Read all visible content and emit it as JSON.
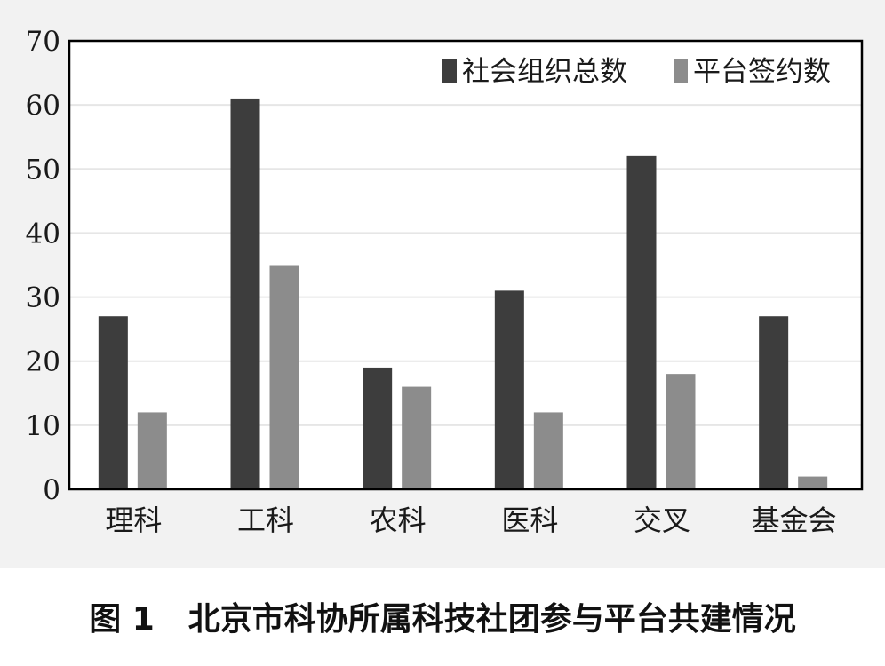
{
  "caption": {
    "figure_no": "图 1",
    "title": "北京市科协所属科技社团参与平台共建情况"
  },
  "colors": {
    "series0": "#3d3d3d",
    "series1": "#8c8c8c",
    "grid": "#e6e6e6",
    "axis": "#000000"
  },
  "chart_data": {
    "type": "bar",
    "categories": [
      "理科",
      "工科",
      "农科",
      "医科",
      "交叉",
      "基金会"
    ],
    "series": [
      {
        "name": "社会组织总数",
        "values": [
          27,
          61,
          19,
          31,
          52,
          27
        ]
      },
      {
        "name": "平台签约数",
        "values": [
          12,
          35,
          16,
          12,
          18,
          2
        ]
      }
    ],
    "ylim": [
      0,
      70
    ],
    "yticks": [
      0,
      10,
      20,
      30,
      40,
      50,
      60,
      70
    ],
    "grid": true,
    "legend": "top-right"
  }
}
